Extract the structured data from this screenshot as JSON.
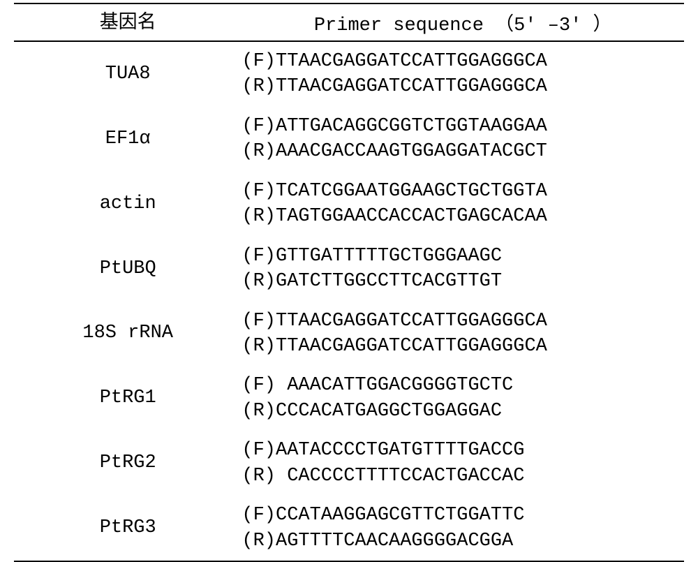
{
  "header": {
    "gene_col": "基因名",
    "primer_col": "Primer sequence （5' –3' ）"
  },
  "rows": [
    {
      "gene": "TUA8",
      "forward_tag": "(F)",
      "forward_seq": "TTAACGAGGATCCATTGGAGGGCA",
      "reverse_tag": "(R)",
      "reverse_seq": "TTAACGAGGATCCATTGGAGGGCA",
      "forward_pad": "",
      "reverse_pad": ""
    },
    {
      "gene": "EF1α",
      "forward_tag": "(F)",
      "forward_seq": "ATTGACAGGCGGTCTGGTAAGGAA",
      "reverse_tag": "(R)",
      "reverse_seq": "AAACGACCAAGTGGAGGATACGCT",
      "forward_pad": "",
      "reverse_pad": ""
    },
    {
      "gene": "actin",
      "forward_tag": "(F)",
      "forward_seq": "TCATCGGAATGGAAGCTGCTGGTA",
      "reverse_tag": "(R)",
      "reverse_seq": "TAGTGGAACCACCACTGAGCACAA",
      "forward_pad": "",
      "reverse_pad": ""
    },
    {
      "gene": "PtUBQ",
      "forward_tag": "(F)",
      "forward_seq": "GTTGATTTTTGCTGGGAAGC",
      "reverse_tag": "(R)",
      "reverse_seq": "GATCTTGGCCTTCACGTTGT",
      "forward_pad": "",
      "reverse_pad": ""
    },
    {
      "gene": "18S rRNA",
      "forward_tag": "(F)",
      "forward_seq": "TTAACGAGGATCCATTGGAGGGCA",
      "reverse_tag": "(R)",
      "reverse_seq": "TTAACGAGGATCCATTGGAGGGCA",
      "forward_pad": "",
      "reverse_pad": ""
    },
    {
      "gene": "PtRG1",
      "forward_tag": "(F)",
      "forward_seq": "AAACATTGGACGGGGTGCTC",
      "reverse_tag": "(R)",
      "reverse_seq": "CCCACATGAGGCTGGAGGAC",
      "forward_pad": " ",
      "reverse_pad": ""
    },
    {
      "gene": "PtRG2",
      "forward_tag": "(F)",
      "forward_seq": "AATACCCCTGATGTTTTGACCG",
      "reverse_tag": "(R)",
      "reverse_seq": "CACCCCTTTTCCACTGACCAC",
      "forward_pad": "",
      "reverse_pad": " "
    },
    {
      "gene": "PtRG3",
      "forward_tag": "(F)",
      "forward_seq": "CCATAAGGAGCGTTCTGGATTC",
      "reverse_tag": "(R)",
      "reverse_seq": "AGTTTTCAACAAGGGGACGGA",
      "forward_pad": "",
      "reverse_pad": ""
    }
  ],
  "style": {
    "background_color": "#ffffff",
    "text_color": "#000000",
    "border_color": "#000000",
    "font_size_pt": 20,
    "row_line_height": 1.35
  }
}
